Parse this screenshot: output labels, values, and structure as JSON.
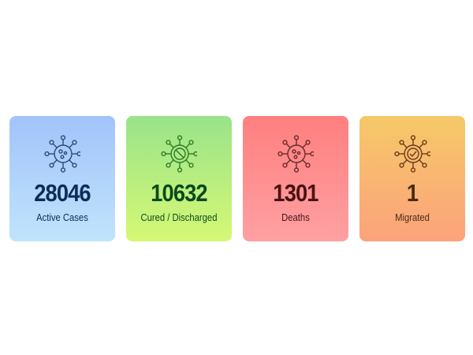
{
  "stats": [
    {
      "value": "28046",
      "label": "Active Cases",
      "icon": "virus-icon",
      "colors": {
        "top": "#a2c3fa",
        "bottom": "#c0e4fc",
        "text": "#0e2b5a",
        "icon": "#2b4a7a"
      }
    },
    {
      "value": "10632",
      "label": "Cured / Discharged",
      "icon": "virus-blocked-icon",
      "colors": {
        "top": "#99e38a",
        "bottom": "#d6f875",
        "text": "#0b4a1c",
        "icon": "#2f7a2a"
      }
    },
    {
      "value": "1301",
      "label": "Deaths",
      "icon": "virus-icon",
      "colors": {
        "top": "#ff7f7f",
        "bottom": "#ffa0a2",
        "text": "#4a1212",
        "icon": "#6a2a2a"
      }
    },
    {
      "value": "1",
      "label": "Migrated",
      "icon": "virus-check-icon",
      "colors": {
        "top": "#f6c968",
        "bottom": "#fca27c",
        "text": "#4a2a12",
        "icon": "#6a3a1a"
      }
    }
  ]
}
